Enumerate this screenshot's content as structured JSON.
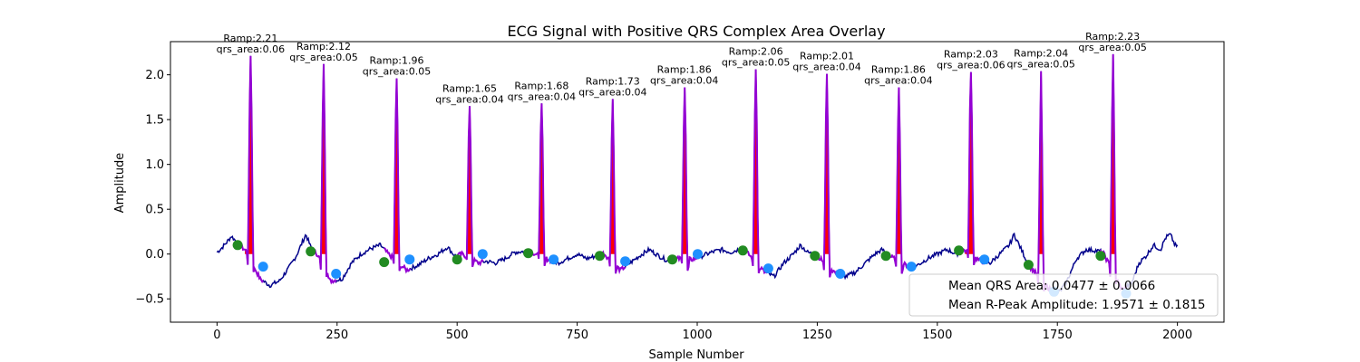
{
  "chart_data": {
    "type": "line",
    "title": "ECG Signal with Positive QRS Complex Area Overlay",
    "xlabel": "Sample Number",
    "ylabel": "Amplitude",
    "xlim": [
      -97,
      2097
    ],
    "ylim": [
      -0.76,
      2.37
    ],
    "xticks": [
      0,
      250,
      500,
      750,
      1000,
      1250,
      1500,
      1750,
      2000
    ],
    "yticks": [
      -0.5,
      0.0,
      0.5,
      1.0,
      1.5,
      2.0
    ],
    "ytick_labels": [
      "−0.5",
      "0.0",
      "0.5",
      "1.0",
      "1.5",
      "2.0"
    ],
    "grid": false,
    "colors": {
      "signal": "#00008b",
      "qrs_segment": "#9400d3",
      "qrs_area_fill": "#ff0000",
      "onset_marker": "#228b22",
      "offset_marker": "#1e90ff"
    },
    "beats": [
      {
        "r": 70,
        "amp": 2.21,
        "label": "Ramp:2.21",
        "area_label": "qrs_area:0.06",
        "onset": [
          43,
          0.1
        ],
        "offset": [
          96,
          -0.14
        ]
      },
      {
        "r": 222,
        "amp": 2.12,
        "label": "Ramp:2.12",
        "area_label": "qrs_area:0.05",
        "onset": [
          195,
          0.03
        ],
        "offset": [
          248,
          -0.22
        ]
      },
      {
        "r": 374,
        "amp": 1.96,
        "label": "Ramp:1.96",
        "area_label": "qrs_area:0.05",
        "onset": [
          348,
          -0.09
        ],
        "offset": [
          401,
          -0.06
        ]
      },
      {
        "r": 526,
        "amp": 1.65,
        "label": "Ramp:1.65",
        "area_label": "qrs_area:0.04",
        "onset": [
          500,
          -0.06
        ],
        "offset": [
          553,
          0.0
        ]
      },
      {
        "r": 676,
        "amp": 1.68,
        "label": "Ramp:1.68",
        "area_label": "qrs_area:0.04",
        "onset": [
          648,
          0.01
        ],
        "offset": [
          701,
          -0.06
        ]
      },
      {
        "r": 824,
        "amp": 1.73,
        "label": "Ramp:1.73",
        "area_label": "qrs_area:0.04",
        "onset": [
          797,
          -0.02
        ],
        "offset": [
          850,
          -0.08
        ]
      },
      {
        "r": 973,
        "amp": 1.86,
        "label": "Ramp:1.86",
        "area_label": "qrs_area:0.04",
        "onset": [
          948,
          -0.06
        ],
        "offset": [
          1001,
          0.0
        ]
      },
      {
        "r": 1122,
        "amp": 2.06,
        "label": "Ramp:2.06",
        "area_label": "qrs_area:0.05",
        "onset": [
          1095,
          0.04
        ],
        "offset": [
          1148,
          -0.16
        ]
      },
      {
        "r": 1270,
        "amp": 2.01,
        "label": "Ramp:2.01",
        "area_label": "qrs_area:0.04",
        "onset": [
          1245,
          -0.02
        ],
        "offset": [
          1298,
          -0.22
        ]
      },
      {
        "r": 1419,
        "amp": 1.86,
        "label": "Ramp:1.86",
        "area_label": "qrs_area:0.04",
        "onset": [
          1393,
          -0.02
        ],
        "offset": [
          1446,
          -0.14
        ]
      },
      {
        "r": 1570,
        "amp": 2.03,
        "label": "Ramp:2.03",
        "area_label": "qrs_area:0.06",
        "onset": [
          1545,
          0.04
        ],
        "offset": [
          1598,
          -0.06
        ]
      },
      {
        "r": 1716,
        "amp": 2.04,
        "label": "Ramp:2.04",
        "area_label": "qrs_area:0.05",
        "onset": [
          1690,
          -0.12
        ],
        "offset": [
          1743,
          -0.42
        ]
      },
      {
        "r": 1865,
        "amp": 2.23,
        "label": "Ramp:2.23",
        "area_label": "qrs_area:0.05",
        "onset": [
          1840,
          -0.02
        ],
        "offset": [
          1893,
          -0.44
        ]
      }
    ],
    "baseline": [
      [
        0,
        0.02
      ],
      [
        10,
        0.07
      ],
      [
        20,
        0.13
      ],
      [
        30,
        0.2
      ],
      [
        40,
        0.14
      ],
      [
        50,
        0.08
      ],
      [
        60,
        0.04
      ],
      [
        90,
        -0.28
      ],
      [
        110,
        -0.35
      ],
      [
        130,
        -0.3
      ],
      [
        150,
        -0.15
      ],
      [
        165,
        -0.02
      ],
      [
        175,
        0.1
      ],
      [
        185,
        0.22
      ],
      [
        195,
        0.08
      ],
      [
        210,
        -0.01
      ],
      [
        235,
        -0.3
      ],
      [
        260,
        -0.28
      ],
      [
        280,
        -0.1
      ],
      [
        300,
        0.0
      ],
      [
        320,
        0.06
      ],
      [
        340,
        0.1
      ],
      [
        355,
        0.01
      ],
      [
        395,
        -0.18
      ],
      [
        420,
        -0.12
      ],
      [
        440,
        -0.05
      ],
      [
        460,
        0.0
      ],
      [
        480,
        0.08
      ],
      [
        495,
        -0.02
      ],
      [
        510,
        0.0
      ],
      [
        545,
        -0.1
      ],
      [
        560,
        -0.08
      ],
      [
        580,
        -0.1
      ],
      [
        600,
        -0.05
      ],
      [
        620,
        0.02
      ],
      [
        640,
        0.03
      ],
      [
        655,
        0.02
      ],
      [
        690,
        -0.06
      ],
      [
        710,
        -0.1
      ],
      [
        730,
        -0.05
      ],
      [
        750,
        0.0
      ],
      [
        770,
        -0.05
      ],
      [
        790,
        -0.02
      ],
      [
        805,
        0.01
      ],
      [
        840,
        -0.18
      ],
      [
        860,
        -0.1
      ],
      [
        880,
        -0.02
      ],
      [
        900,
        0.05
      ],
      [
        920,
        -0.02
      ],
      [
        940,
        -0.08
      ],
      [
        955,
        -0.05
      ],
      [
        990,
        -0.06
      ],
      [
        1010,
        -0.02
      ],
      [
        1030,
        0.02
      ],
      [
        1050,
        0.05
      ],
      [
        1070,
        0.02
      ],
      [
        1085,
        0.05
      ],
      [
        1100,
        0.04
      ],
      [
        1140,
        -0.2
      ],
      [
        1160,
        -0.25
      ],
      [
        1180,
        -0.1
      ],
      [
        1200,
        0.0
      ],
      [
        1215,
        0.1
      ],
      [
        1230,
        0.02
      ],
      [
        1250,
        -0.02
      ],
      [
        1290,
        -0.22
      ],
      [
        1310,
        -0.25
      ],
      [
        1330,
        -0.2
      ],
      [
        1350,
        -0.1
      ],
      [
        1370,
        0.0
      ],
      [
        1385,
        0.05
      ],
      [
        1400,
        -0.02
      ],
      [
        1440,
        -0.14
      ],
      [
        1460,
        -0.12
      ],
      [
        1480,
        -0.05
      ],
      [
        1500,
        0.0
      ],
      [
        1520,
        0.05
      ],
      [
        1540,
        0.0
      ],
      [
        1555,
        0.05
      ],
      [
        1590,
        -0.08
      ],
      [
        1610,
        -0.1
      ],
      [
        1630,
        0.0
      ],
      [
        1650,
        0.1
      ],
      [
        1660,
        0.22
      ],
      [
        1675,
        0.05
      ],
      [
        1690,
        -0.12
      ],
      [
        1735,
        -0.4
      ],
      [
        1755,
        -0.42
      ],
      [
        1770,
        -0.3
      ],
      [
        1790,
        -0.05
      ],
      [
        1810,
        0.05
      ],
      [
        1830,
        0.04
      ],
      [
        1845,
        0.02
      ],
      [
        1885,
        -0.4
      ],
      [
        1905,
        -0.32
      ],
      [
        1920,
        -0.1
      ],
      [
        1935,
        -0.02
      ],
      [
        1950,
        0.1
      ],
      [
        1965,
        0.05
      ],
      [
        1975,
        0.18
      ],
      [
        1985,
        0.22
      ],
      [
        1995,
        0.1
      ],
      [
        2000,
        0.08
      ]
    ],
    "legend": {
      "position": "lower-right",
      "entries": [
        "Mean QRS Area: 0.0477 ± 0.0066",
        "Mean R-Peak Amplitude: 1.9571 ± 0.1815"
      ]
    }
  }
}
